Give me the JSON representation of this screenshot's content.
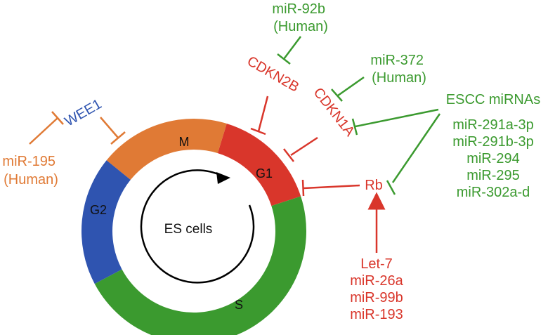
{
  "diagram": {
    "center_label": "ES cells",
    "phases": {
      "M": "M",
      "G1": "G1",
      "S": "S",
      "G2": "G2"
    },
    "targets": {
      "wee1": "WEE1",
      "cdkn2b": "CDKN2B",
      "cdkn1a": "CDKN1A",
      "rb": "Rb"
    },
    "regulators": {
      "mir195": [
        "miR-195",
        "(Human)"
      ],
      "mir92b": [
        "miR-92b",
        "(Human)"
      ],
      "mir372": [
        "miR-372",
        "(Human)"
      ],
      "escc_title": "ESCC miRNAs",
      "escc_members": [
        "miR-291a-3p",
        "miR-291b-3p",
        "miR-294",
        "miR-295",
        "miR-302a-d"
      ],
      "let7_group": [
        "Let-7",
        "miR-26a",
        "miR-99b",
        "miR-193"
      ]
    }
  },
  "colors": {
    "M": "#e07a35",
    "G1": "#d9362b",
    "S": "#3b9a2f",
    "G2": "#2f54b0",
    "orange": "#e07a35",
    "red": "#d9362b",
    "green": "#3b9a2f",
    "blue": "#2f54b0"
  }
}
